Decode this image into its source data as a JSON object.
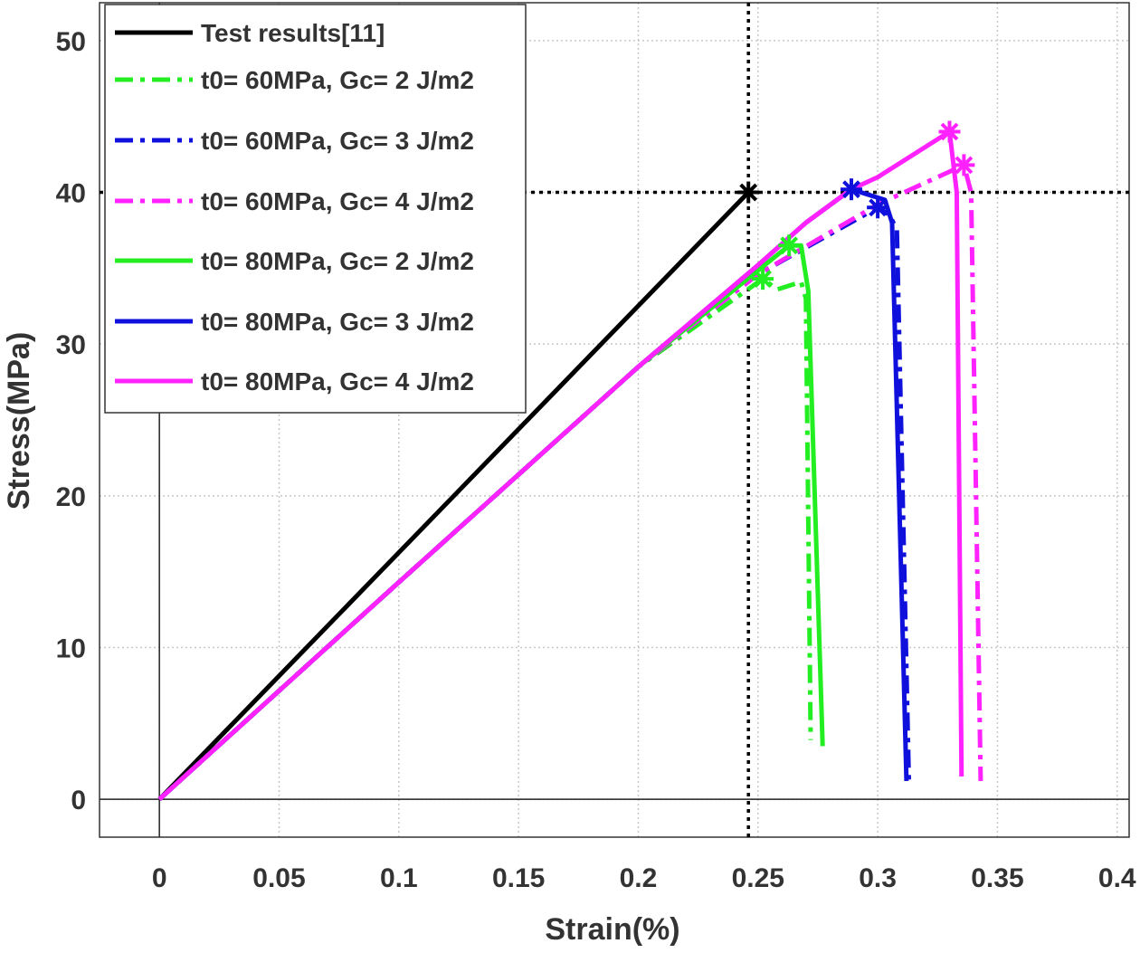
{
  "chart_data": {
    "type": "line",
    "xlabel": "Strain(%)",
    "ylabel": "Stress(MPa)",
    "xlim": [
      -0.025,
      0.405
    ],
    "ylim": [
      -2.5,
      52.5
    ],
    "xticks": [
      0,
      0.05,
      0.1,
      0.15,
      0.2,
      0.25,
      0.3,
      0.35,
      0.4
    ],
    "yticks": [
      0,
      10,
      20,
      30,
      40,
      50
    ],
    "grid": true,
    "legend": "upper left",
    "ref_x": 0.246,
    "ref_y": 40,
    "series": [
      {
        "name": "Test results[11]",
        "color": "#000000",
        "style": "solid",
        "x": [
          0,
          0.246
        ],
        "values": [
          0,
          40
        ],
        "peak_x": 0.246,
        "peak_y": 40
      },
      {
        "name": "t0= 60MPa, Gc= 2 J/m2",
        "color": "#22ee22",
        "style": "dashdot",
        "x": [
          0,
          0.1,
          0.2,
          0.252,
          0.258,
          0.268,
          0.27,
          0.272
        ],
        "values": [
          0,
          14.3,
          28.5,
          34.3,
          33.6,
          34.1,
          33,
          3.9
        ],
        "peak_x": 0.252,
        "peak_y": 34.3
      },
      {
        "name": "t0= 60MPa, Gc= 3 J/m2",
        "color": "#1010dd",
        "style": "dashdot",
        "x": [
          0,
          0.1,
          0.2,
          0.25,
          0.3,
          0.305,
          0.308,
          0.313
        ],
        "values": [
          0,
          14.3,
          28.5,
          34.6,
          39,
          38.5,
          37.5,
          1.2
        ],
        "peak_x": 0.3,
        "peak_y": 39
      },
      {
        "name": "t0= 60MPa, Gc= 4 J/m2",
        "color": "#ff22ff",
        "style": "dashdot",
        "x": [
          0,
          0.1,
          0.2,
          0.25,
          0.3,
          0.336,
          0.339,
          0.343
        ],
        "values": [
          0,
          14.3,
          28.5,
          34.6,
          39.2,
          41.8,
          40,
          1.2
        ],
        "peak_x": 0.336,
        "peak_y": 41.8
      },
      {
        "name": "t0= 80MPa, Gc= 2 J/m2",
        "color": "#22ee22",
        "style": "solid",
        "x": [
          0,
          0.1,
          0.2,
          0.263,
          0.268,
          0.271,
          0.277
        ],
        "values": [
          0,
          14.3,
          28.5,
          36.5,
          36.5,
          33.5,
          3.5
        ],
        "peak_x": 0.263,
        "peak_y": 36.5
      },
      {
        "name": "t0= 80MPa, Gc= 3 J/m2",
        "color": "#1010dd",
        "style": "solid",
        "x": [
          0,
          0.1,
          0.2,
          0.25,
          0.27,
          0.289,
          0.303,
          0.306,
          0.312
        ],
        "values": [
          0,
          14.3,
          28.5,
          35.2,
          38,
          40.2,
          39.5,
          38,
          1.2
        ],
        "peak_x": 0.289,
        "peak_y": 40.2
      },
      {
        "name": "t0= 80MPa, Gc= 4 J/m2",
        "color": "#ff22ff",
        "style": "solid",
        "x": [
          0,
          0.1,
          0.2,
          0.25,
          0.27,
          0.289,
          0.3,
          0.315,
          0.33,
          0.333,
          0.335
        ],
        "values": [
          0,
          14.3,
          28.5,
          35.2,
          38,
          40.2,
          41,
          42.5,
          44,
          40,
          1.5
        ],
        "peak_x": 0.33,
        "peak_y": 44
      }
    ]
  }
}
